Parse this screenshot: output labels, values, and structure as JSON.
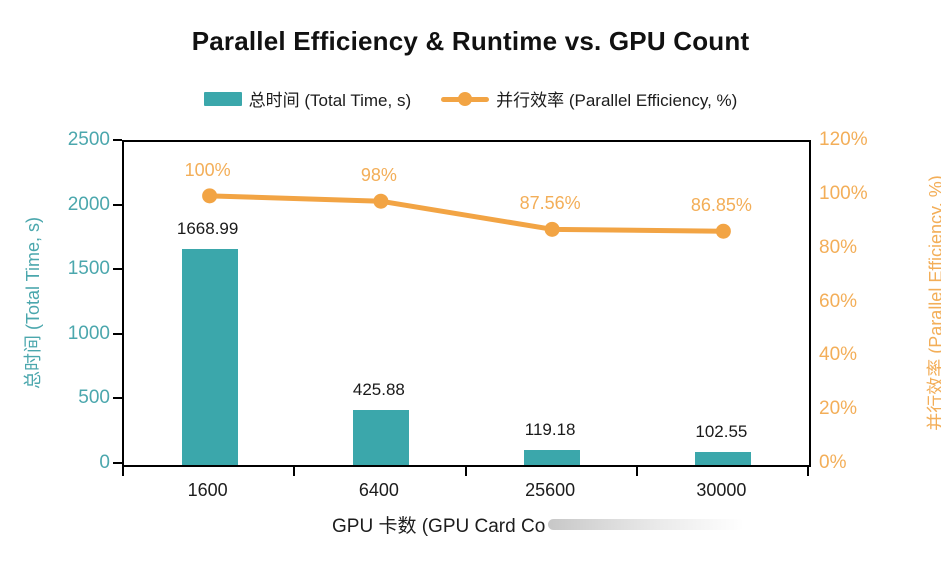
{
  "title": "Parallel Efficiency & Runtime vs. GPU Count",
  "colors": {
    "bar": "#3BA7AB",
    "line": "#F2A444",
    "teal_label": "#4BA7AD",
    "orange_label": "#F3AE58",
    "axis": "#000000"
  },
  "legend": {
    "items": [
      {
        "label": "总时间 (Total Time, s)",
        "type": "bar"
      },
      {
        "label": "并行效率 (Parallel Efficiency, %)",
        "type": "line"
      }
    ]
  },
  "chart_data": {
    "type": "bar+line",
    "title": "Parallel Efficiency & Runtime vs. GPU Count",
    "categories": [
      "1600",
      "6400",
      "25600",
      "30000"
    ],
    "series": [
      {
        "name": "总时间 (Total Time, s)",
        "type": "bar",
        "axis": "left",
        "values": [
          1668.99,
          425.88,
          119.18,
          102.55
        ],
        "value_labels": [
          "1668.99",
          "425.88",
          "119.18",
          "102.55"
        ]
      },
      {
        "name": "并行效率 (Parallel Efficiency, %)",
        "type": "line",
        "axis": "right",
        "values": [
          100,
          98,
          87.56,
          86.85
        ],
        "value_labels": [
          "100%",
          "98%",
          "87.56%",
          "86.85%"
        ]
      }
    ],
    "left_axis": {
      "title": "总时间 (Total Time, s)",
      "min": 0,
      "max": 2500,
      "tick_values": [
        0,
        500,
        1000,
        1500,
        2000,
        2500
      ],
      "tick_labels": [
        "0",
        "500",
        "1000",
        "1500",
        "2000",
        "2500"
      ]
    },
    "right_axis": {
      "title": "并行效率 (Parallel Efficiency, %)",
      "min": 0,
      "max": 120,
      "tick_values": [
        0,
        20,
        40,
        60,
        80,
        100,
        120
      ],
      "tick_labels": [
        "0%",
        "20%",
        "40%",
        "60%",
        "80%",
        "100%",
        "120%"
      ]
    },
    "x_axis": {
      "title_visible": "GPU 卡数 (GPU Card Co",
      "labels": [
        "1600",
        "6400",
        "25600",
        "30000"
      ]
    },
    "grid": false,
    "legend_position": "top"
  }
}
